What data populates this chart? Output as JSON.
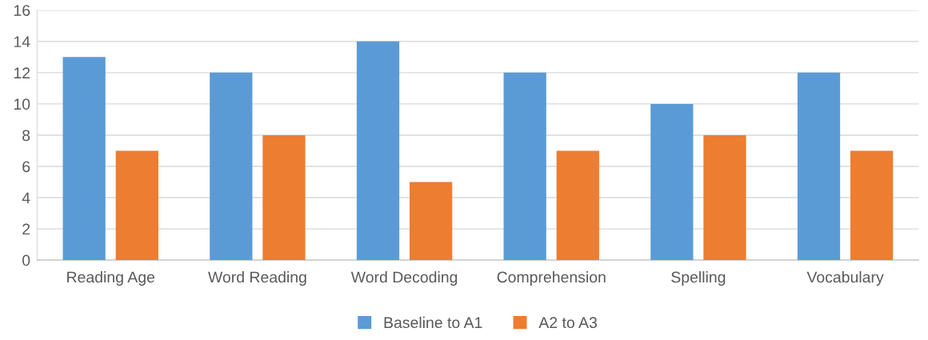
{
  "chart_data": {
    "type": "bar",
    "categories": [
      "Reading Age",
      "Word Reading",
      "Word Decoding",
      "Comprehension",
      "Spelling",
      "Vocabulary"
    ],
    "series": [
      {
        "name": "Baseline to A1",
        "color": "#5b9bd5",
        "values": [
          13,
          12,
          14,
          12,
          10,
          12
        ]
      },
      {
        "name": "A2 to A3",
        "color": "#ed7d31",
        "values": [
          7,
          8,
          5,
          7,
          8,
          7
        ]
      }
    ],
    "ylim": [
      0,
      16
    ],
    "yticks": [
      0,
      2,
      4,
      6,
      8,
      10,
      12,
      14,
      16
    ],
    "grid": "y",
    "legend": "bottom"
  }
}
